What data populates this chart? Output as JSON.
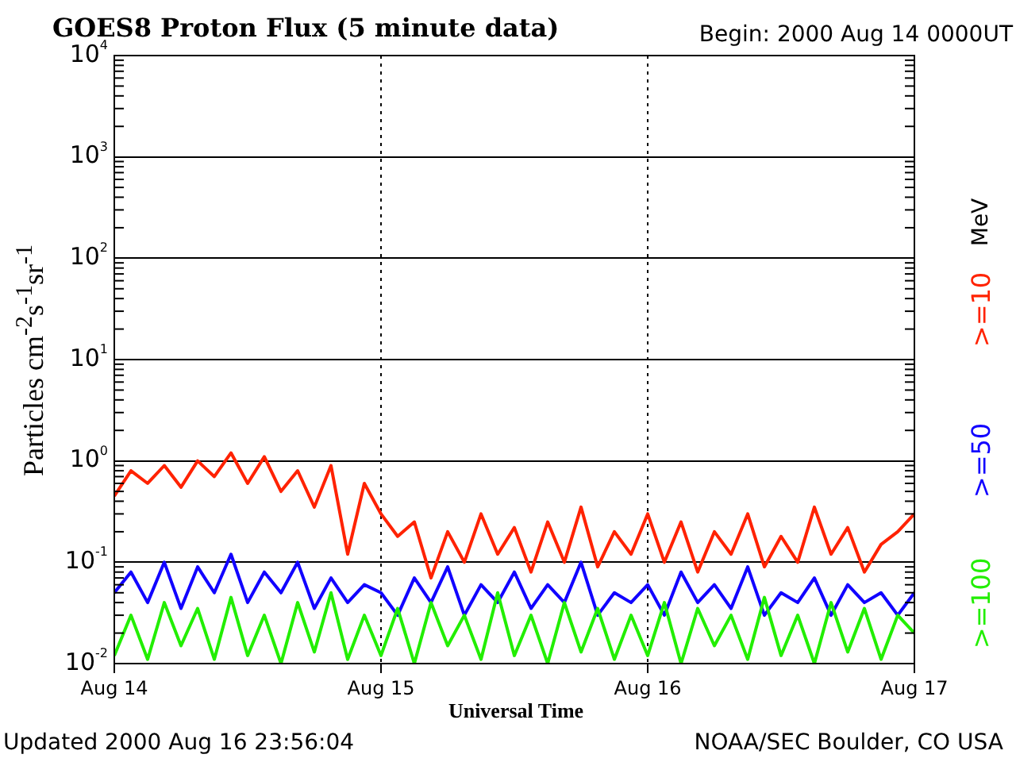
{
  "chart_data": {
    "type": "line",
    "title": "GOES8 Proton Flux (5 minute data)",
    "subtitle": "Begin: 2000 Aug 14 0000UT",
    "xlabel": "Universal Time",
    "ylabel": "Particles cm$^{-2}$s$^{-1}$sr$^{-1}$",
    "legend_title": "MeV",
    "legend": "right",
    "log": true,
    "grid": true,
    "annotations": [
      "Updated 2000 Aug 16 23:56:04",
      "NOAA/SEC Boulder, CO USA"
    ],
    "xlim": [
      "2000-08-14",
      "2000-08-17"
    ],
    "xticks": [
      {
        "value": "2000-08-14",
        "label": "Aug 14"
      },
      {
        "value": "2000-08-15",
        "label": "Aug 15"
      },
      {
        "value": "2000-08-16",
        "label": "Aug 16"
      },
      {
        "value": "2000-08-17",
        "label": "Aug 17"
      }
    ],
    "ylim": [
      0.01,
      10000
    ],
    "yticks": [
      {
        "value": 0.01,
        "label": "10$^{-2}$"
      },
      {
        "value": 0.1,
        "label": "10$^{-1}$"
      },
      {
        "value": 1,
        "label": "10$^{0}$"
      },
      {
        "value": 10,
        "label": "10$^{1}$"
      },
      {
        "value": 100,
        "label": "10$^{2}$"
      },
      {
        "value": 1000,
        "label": "10$^{3}$"
      },
      {
        "value": 10000,
        "label": "10$^{4}$"
      }
    ],
    "x": [
      "2000-08-14T00:00",
      "2000-08-14T01:30",
      "2000-08-14T03:00",
      "2000-08-14T04:30",
      "2000-08-14T06:00",
      "2000-08-14T07:30",
      "2000-08-14T09:00",
      "2000-08-14T10:30",
      "2000-08-14T12:00",
      "2000-08-14T13:30",
      "2000-08-14T15:00",
      "2000-08-14T16:30",
      "2000-08-14T18:00",
      "2000-08-14T19:30",
      "2000-08-14T21:00",
      "2000-08-14T22:30",
      "2000-08-15T00:00",
      "2000-08-15T01:30",
      "2000-08-15T03:00",
      "2000-08-15T04:30",
      "2000-08-15T06:00",
      "2000-08-15T07:30",
      "2000-08-15T09:00",
      "2000-08-15T10:30",
      "2000-08-15T12:00",
      "2000-08-15T13:30",
      "2000-08-15T15:00",
      "2000-08-15T16:30",
      "2000-08-15T18:00",
      "2000-08-15T19:30",
      "2000-08-15T21:00",
      "2000-08-15T22:30",
      "2000-08-16T00:00",
      "2000-08-16T01:30",
      "2000-08-16T03:00",
      "2000-08-16T04:30",
      "2000-08-16T06:00",
      "2000-08-16T07:30",
      "2000-08-16T09:00",
      "2000-08-16T10:30",
      "2000-08-16T12:00",
      "2000-08-16T13:30",
      "2000-08-16T15:00",
      "2000-08-16T16:30",
      "2000-08-16T18:00",
      "2000-08-16T19:30",
      "2000-08-16T21:00",
      "2000-08-16T22:30",
      "2000-08-17T00:00"
    ],
    "series": [
      {
        "name": ">=10",
        "color": "#ff2200",
        "values": [
          0.45,
          0.8,
          0.6,
          0.9,
          0.55,
          1.0,
          0.7,
          1.2,
          0.6,
          1.1,
          0.5,
          0.8,
          0.35,
          0.9,
          0.12,
          0.6,
          0.3,
          0.18,
          0.25,
          0.07,
          0.2,
          0.1,
          0.3,
          0.12,
          0.22,
          0.08,
          0.25,
          0.1,
          0.35,
          0.09,
          0.2,
          0.12,
          0.3,
          0.1,
          0.25,
          0.08,
          0.2,
          0.12,
          0.3,
          0.09,
          0.18,
          0.1,
          0.35,
          0.12,
          0.22,
          0.08,
          0.15,
          0.2,
          0.3
        ]
      },
      {
        "name": ">=50",
        "color": "#1100ff",
        "values": [
          0.05,
          0.08,
          0.04,
          0.1,
          0.035,
          0.09,
          0.05,
          0.12,
          0.04,
          0.08,
          0.05,
          0.1,
          0.035,
          0.07,
          0.04,
          0.06,
          0.05,
          0.03,
          0.07,
          0.04,
          0.09,
          0.03,
          0.06,
          0.04,
          0.08,
          0.035,
          0.06,
          0.04,
          0.1,
          0.03,
          0.05,
          0.04,
          0.06,
          0.03,
          0.08,
          0.04,
          0.06,
          0.035,
          0.09,
          0.03,
          0.05,
          0.04,
          0.07,
          0.03,
          0.06,
          0.04,
          0.05,
          0.03,
          0.05
        ]
      },
      {
        "name": ">=100",
        "color": "#22ee00",
        "values": [
          0.012,
          0.03,
          0.011,
          0.04,
          0.015,
          0.035,
          0.011,
          0.045,
          0.012,
          0.03,
          0.01,
          0.04,
          0.013,
          0.05,
          0.011,
          0.03,
          0.012,
          0.035,
          0.01,
          0.04,
          0.015,
          0.03,
          0.011,
          0.05,
          0.012,
          0.03,
          0.01,
          0.04,
          0.013,
          0.035,
          0.011,
          0.03,
          0.012,
          0.04,
          0.01,
          0.035,
          0.015,
          0.03,
          0.011,
          0.045,
          0.012,
          0.03,
          0.01,
          0.04,
          0.013,
          0.035,
          0.011,
          0.03,
          0.02
        ]
      }
    ]
  }
}
